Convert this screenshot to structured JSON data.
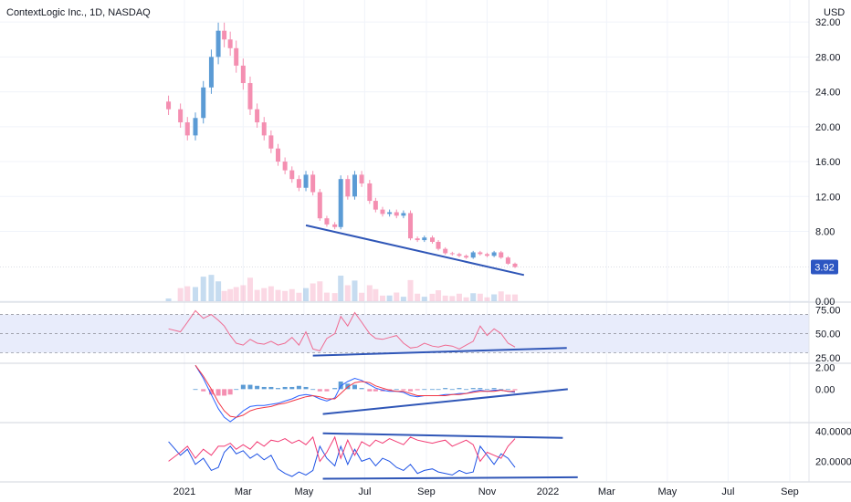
{
  "chart_data": {
    "type": "line",
    "title": "ContextLogic Inc., 1D, NASDAQ",
    "currency": "USD",
    "last_price": "3.92",
    "x_ticks": [
      "2021",
      "Mar",
      "May",
      "Jul",
      "Sep",
      "Nov",
      "2022",
      "Mar",
      "May",
      "Jul",
      "Sep"
    ],
    "price_axis": {
      "ylim": [
        0,
        34
      ],
      "ticks": [
        "32.00",
        "28.00",
        "24.00",
        "20.00",
        "16.00",
        "12.00",
        "8.00",
        "0.00"
      ]
    },
    "rsi_axis": {
      "ylim": [
        20,
        82
      ],
      "ticks": [
        "75.00",
        "50.00",
        "25.00"
      ],
      "band": [
        30,
        70
      ]
    },
    "macd_axis": {
      "ylim": [
        -3,
        2.3
      ],
      "ticks": [
        "2.00",
        "0.00"
      ]
    },
    "dmi_axis": {
      "ylim": [
        7,
        45
      ],
      "ticks": [
        "40.0000",
        "20.0000"
      ]
    },
    "price_series": {
      "name": "",
      "x": [
        "2020-12-16",
        "2020-12-28",
        "2021-01-04",
        "2021-01-12",
        "2021-01-20",
        "2021-01-28",
        "2021-02-04",
        "2021-02-10",
        "2021-02-16",
        "2021-02-22",
        "2021-03-01",
        "2021-03-08",
        "2021-03-15",
        "2021-03-22",
        "2021-03-29",
        "2021-04-05",
        "2021-04-12",
        "2021-04-19",
        "2021-04-26",
        "2021-05-03",
        "2021-05-10",
        "2021-05-17",
        "2021-05-24",
        "2021-06-01",
        "2021-06-07",
        "2021-06-14",
        "2021-06-21",
        "2021-06-28",
        "2021-07-06",
        "2021-07-12",
        "2021-07-19",
        "2021-07-26",
        "2021-08-02",
        "2021-08-09",
        "2021-08-16",
        "2021-08-23",
        "2021-08-30",
        "2021-09-07",
        "2021-09-13",
        "2021-09-20",
        "2021-09-27",
        "2021-10-04",
        "2021-10-11",
        "2021-10-18",
        "2021-10-25",
        "2021-11-01",
        "2021-11-08",
        "2021-11-15",
        "2021-11-22",
        "2021-11-29"
      ],
      "y": [
        22.0,
        20.5,
        19.0,
        21.0,
        24.5,
        28.0,
        31.0,
        30.0,
        29.0,
        27.0,
        25.0,
        22.0,
        20.5,
        19.0,
        17.5,
        16.0,
        15.0,
        14.0,
        13.0,
        14.5,
        12.5,
        9.5,
        8.8,
        8.5,
        14.0,
        12.0,
        14.5,
        13.5,
        11.5,
        10.5,
        10.0,
        10.2,
        9.8,
        10.1,
        7.2,
        7.0,
        7.3,
        6.8,
        6.0,
        5.5,
        5.4,
        5.2,
        5.0,
        5.6,
        5.4,
        5.2,
        5.6,
        5.0,
        4.3,
        3.92
      ]
    },
    "rsi_series": {
      "name": "",
      "y": [
        55,
        52,
        62,
        74,
        66,
        70,
        64,
        58,
        48,
        40,
        38,
        44,
        40,
        39,
        42,
        38,
        40,
        46,
        38,
        52,
        34,
        32,
        45,
        50,
        68,
        58,
        72,
        62,
        50,
        45,
        44,
        46,
        48,
        40,
        35,
        36,
        40,
        37,
        36,
        38,
        37,
        34,
        38,
        42,
        58,
        48,
        55,
        50,
        40,
        36
      ]
    },
    "macd": {
      "macd_line": [
        null,
        null,
        null,
        2.2,
        1.0,
        -0.5,
        -1.8,
        -2.6,
        -3.0,
        -2.6,
        -2.0,
        -1.6,
        -1.5,
        -1.5,
        -1.4,
        -1.3,
        -1.1,
        -0.9,
        -0.6,
        -0.5,
        -0.6,
        -0.9,
        -1.1,
        -0.8,
        0.3,
        0.7,
        1.0,
        0.8,
        0.4,
        0.1,
        -0.1,
        -0.2,
        -0.2,
        -0.3,
        -0.6,
        -0.7,
        -0.6,
        -0.6,
        -0.6,
        -0.5,
        -0.5,
        -0.4,
        -0.4,
        -0.2,
        -0.1,
        -0.2,
        -0.1,
        -0.1,
        -0.2,
        -0.3
      ],
      "signal_line": [
        null,
        null,
        null,
        2.2,
        1.2,
        0.0,
        -1.2,
        -2.0,
        -2.5,
        -2.6,
        -2.4,
        -2.0,
        -1.8,
        -1.7,
        -1.6,
        -1.4,
        -1.3,
        -1.1,
        -0.9,
        -0.7,
        -0.6,
        -0.7,
        -0.9,
        -0.9,
        -0.4,
        0.2,
        0.6,
        0.7,
        0.6,
        0.3,
        0.1,
        -0.1,
        -0.2,
        -0.2,
        -0.4,
        -0.6,
        -0.6,
        -0.6,
        -0.6,
        -0.6,
        -0.5,
        -0.5,
        -0.4,
        -0.3,
        -0.2,
        -0.2,
        -0.2,
        -0.1,
        -0.2,
        -0.2
      ]
    },
    "dmi": {
      "plus_di": [
        33,
        24,
        28,
        18,
        22,
        14,
        16,
        26,
        30,
        25,
        27,
        22,
        25,
        21,
        24,
        15,
        12,
        10,
        13,
        11,
        14,
        30,
        22,
        17,
        30,
        18,
        28,
        20,
        22,
        17,
        22,
        20,
        16,
        14,
        18,
        12,
        14,
        15,
        13,
        12,
        11,
        14,
        12,
        13,
        30,
        24,
        18,
        25,
        22,
        16
      ],
      "minus_di": [
        20,
        26,
        30,
        22,
        28,
        24,
        30,
        30,
        32,
        28,
        31,
        28,
        33,
        30,
        34,
        33,
        35,
        32,
        34,
        31,
        36,
        20,
        26,
        36,
        22,
        34,
        24,
        33,
        30,
        34,
        32,
        35,
        33,
        31,
        36,
        34,
        33,
        32,
        33,
        34,
        30,
        32,
        34,
        31,
        20,
        26,
        24,
        22,
        30,
        35
      ]
    },
    "trendlines": {
      "price": [
        [
          "2021-05-03",
          8.7
        ],
        [
          "2021-12-08",
          3.0
        ]
      ],
      "rsi": [
        [
          "2021-05-10",
          27
        ],
        [
          "2022-01-20",
          35
        ]
      ],
      "macd": [
        [
          "2021-05-20",
          -2.3
        ],
        [
          "2022-01-21",
          0.0
        ]
      ],
      "dmi_upper": [
        [
          "2021-05-20",
          38.5
        ],
        [
          "2022-01-16",
          35.5
        ]
      ],
      "dmi_lower": [
        [
          "2021-05-20",
          8.5
        ],
        [
          "2022-01-31",
          9.5
        ]
      ]
    },
    "colors": {
      "up": "#5b9bd5",
      "down": "#f48fb1",
      "rsi_line": "#ef6b91",
      "rsi_band": "#e8ecfb",
      "macd_line": "#2962ff",
      "signal_line": "#f23645",
      "dmi_plus": "#1e53e5",
      "dmi_minus": "#f23b74",
      "trendline": "#2f56b7",
      "price_label_bg": "#2d56c2"
    }
  }
}
